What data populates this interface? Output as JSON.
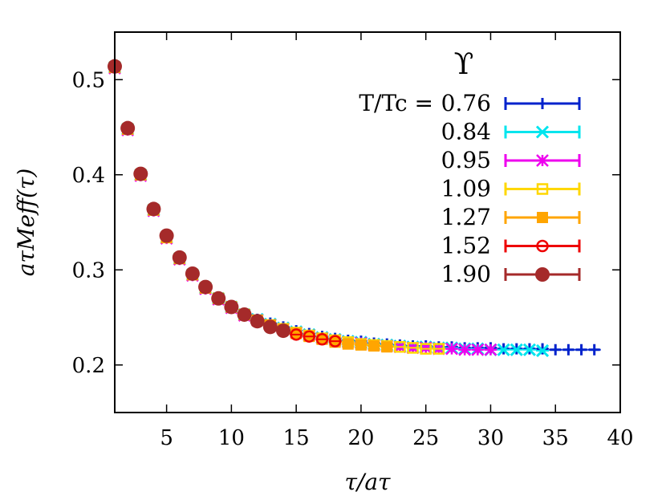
{
  "chart_data": {
    "type": "scatter",
    "xlabel": "τ/aτ",
    "ylabel": "aτMeff(τ)",
    "xlim": [
      1,
      40
    ],
    "ylim": [
      0.15,
      0.55
    ],
    "xticks": [
      5,
      10,
      15,
      20,
      25,
      30,
      35,
      40
    ],
    "yticks": [
      0.2,
      0.3,
      0.4,
      0.5
    ],
    "grid": false,
    "legend": {
      "position": "top-right",
      "title": "ϒ",
      "header": "T/Tc = "
    },
    "series": [
      {
        "name": "0.76",
        "color": "#0022cc",
        "marker": "plus",
        "x": [
          1,
          2,
          3,
          4,
          5,
          6,
          7,
          8,
          9,
          10,
          11,
          12,
          13,
          14,
          15,
          16,
          17,
          18,
          19,
          20,
          21,
          22,
          23,
          24,
          25,
          26,
          27,
          28,
          29,
          30,
          31,
          32,
          33,
          34,
          35,
          36,
          37,
          38
        ],
        "y": [
          0.514,
          0.449,
          0.401,
          0.364,
          0.335,
          0.313,
          0.296,
          0.281,
          0.27,
          0.261,
          0.254,
          0.248,
          0.244,
          0.24,
          0.236,
          0.233,
          0.23,
          0.228,
          0.226,
          0.225,
          0.223,
          0.222,
          0.221,
          0.22,
          0.22,
          0.219,
          0.219,
          0.218,
          0.218,
          0.218,
          0.217,
          0.217,
          0.217,
          0.217,
          0.216,
          0.216,
          0.216,
          0.216
        ]
      },
      {
        "name": "0.84",
        "color": "#00e5ee",
        "marker": "cross",
        "x": [
          1,
          2,
          3,
          4,
          5,
          6,
          7,
          8,
          9,
          10,
          11,
          12,
          13,
          14,
          15,
          16,
          17,
          18,
          19,
          20,
          21,
          22,
          23,
          24,
          25,
          26,
          27,
          28,
          29,
          30,
          31,
          32,
          33,
          34
        ],
        "y": [
          0.513,
          0.448,
          0.4,
          0.363,
          0.334,
          0.312,
          0.295,
          0.281,
          0.27,
          0.261,
          0.253,
          0.248,
          0.243,
          0.239,
          0.235,
          0.232,
          0.229,
          0.227,
          0.225,
          0.224,
          0.222,
          0.221,
          0.22,
          0.219,
          0.219,
          0.218,
          0.218,
          0.217,
          0.217,
          0.216,
          0.216,
          0.216,
          0.216,
          0.215
        ]
      },
      {
        "name": "0.95",
        "color": "#ee00ee",
        "marker": "star",
        "x": [
          1,
          2,
          3,
          4,
          5,
          6,
          7,
          8,
          9,
          10,
          11,
          12,
          13,
          14,
          15,
          16,
          17,
          18,
          19,
          20,
          21,
          22,
          23,
          24,
          25,
          26,
          27,
          28,
          29,
          30
        ],
        "y": [
          0.512,
          0.447,
          0.399,
          0.362,
          0.333,
          0.311,
          0.294,
          0.28,
          0.269,
          0.26,
          0.252,
          0.247,
          0.242,
          0.238,
          0.234,
          0.231,
          0.228,
          0.226,
          0.224,
          0.223,
          0.221,
          0.22,
          0.219,
          0.218,
          0.218,
          0.217,
          0.217,
          0.216,
          0.216,
          0.216
        ]
      },
      {
        "name": "1.09",
        "color": "#ffd700",
        "marker": "open-square",
        "x": [
          1,
          2,
          3,
          4,
          5,
          6,
          7,
          8,
          9,
          10,
          11,
          12,
          13,
          14,
          15,
          16,
          17,
          18,
          19,
          20,
          21,
          22,
          23,
          24,
          25,
          26
        ],
        "y": [
          0.513,
          0.448,
          0.4,
          0.363,
          0.334,
          0.312,
          0.295,
          0.281,
          0.27,
          0.261,
          0.253,
          0.247,
          0.242,
          0.238,
          0.234,
          0.231,
          0.228,
          0.226,
          0.224,
          0.222,
          0.221,
          0.22,
          0.219,
          0.218,
          0.217,
          0.217
        ]
      },
      {
        "name": "1.27",
        "color": "#ffa500",
        "marker": "filled-square",
        "x": [
          1,
          2,
          3,
          4,
          5,
          6,
          7,
          8,
          9,
          10,
          11,
          12,
          13,
          14,
          15,
          16,
          17,
          18,
          19,
          20,
          21,
          22
        ],
        "y": [
          0.513,
          0.448,
          0.4,
          0.363,
          0.334,
          0.312,
          0.295,
          0.281,
          0.27,
          0.261,
          0.253,
          0.247,
          0.242,
          0.237,
          0.233,
          0.23,
          0.227,
          0.224,
          0.222,
          0.221,
          0.22,
          0.219
        ]
      },
      {
        "name": "1.52",
        "color": "#ee0000",
        "marker": "open-circle",
        "x": [
          1,
          2,
          3,
          4,
          5,
          6,
          7,
          8,
          9,
          10,
          11,
          12,
          13,
          14,
          15,
          16,
          17,
          18
        ],
        "y": [
          0.513,
          0.448,
          0.4,
          0.364,
          0.335,
          0.313,
          0.296,
          0.282,
          0.27,
          0.261,
          0.253,
          0.246,
          0.24,
          0.236,
          0.232,
          0.23,
          0.227,
          0.225
        ]
      },
      {
        "name": "1.90",
        "color": "#a52a2a",
        "marker": "filled-circle",
        "x": [
          1,
          2,
          3,
          4,
          5,
          6,
          7,
          8,
          9,
          10,
          11,
          12,
          13,
          14
        ],
        "y": [
          0.514,
          0.449,
          0.401,
          0.364,
          0.336,
          0.313,
          0.296,
          0.282,
          0.27,
          0.261,
          0.253,
          0.246,
          0.24,
          0.236
        ]
      }
    ]
  }
}
